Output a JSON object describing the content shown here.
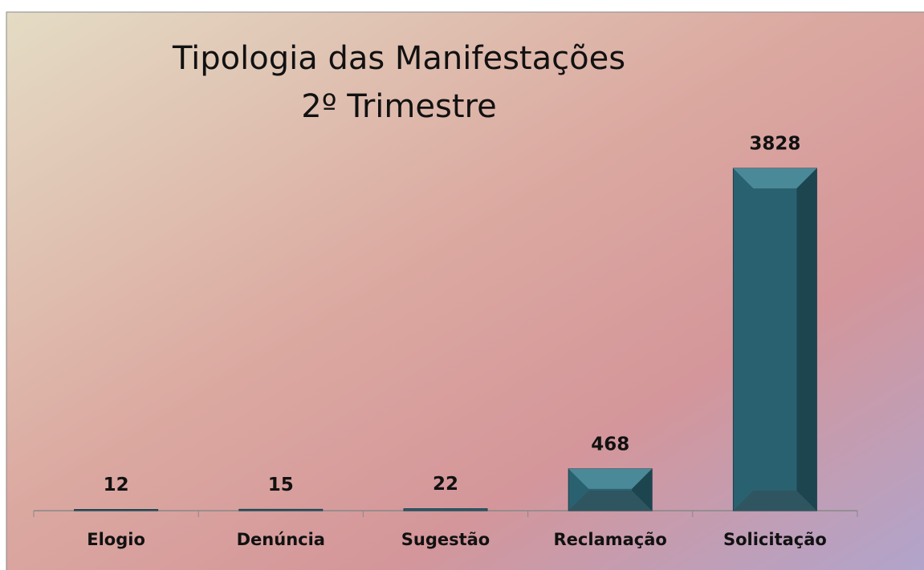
{
  "chart_data": {
    "type": "bar",
    "title": "Tipologia das Manifestações",
    "subtitle": "2º Trimestre",
    "categories": [
      "Elogio",
      "Denúncia",
      "Sugestão",
      "Reclamação",
      "Solicitação"
    ],
    "values": [
      12,
      15,
      22,
      468,
      3828
    ],
    "color": "#2a6170"
  }
}
